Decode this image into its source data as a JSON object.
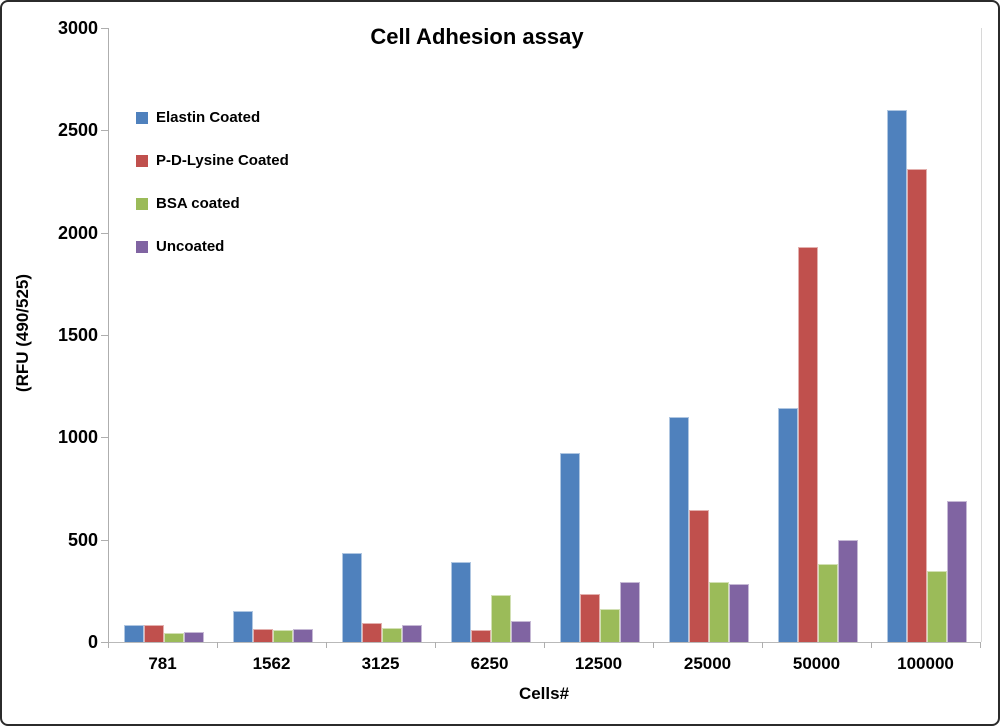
{
  "chart_data": {
    "type": "bar",
    "title": "Cell Adhesion assay",
    "xlabel": "Cells#",
    "ylabel": "(RFU (490/525)",
    "categories": [
      "781",
      "1562",
      "3125",
      "6250",
      "12500",
      "25000",
      "50000",
      "100000"
    ],
    "series": [
      {
        "name": "Elastin Coated",
        "color": "#4F81BD",
        "values": [
          85,
          153,
          435,
          390,
          925,
          1100,
          1145,
          2600
        ]
      },
      {
        "name": "P-D-Lysine Coated",
        "color": "#C0504D",
        "values": [
          84,
          62,
          95,
          58,
          235,
          645,
          1930,
          2310
        ]
      },
      {
        "name": "BSA coated",
        "color": "#9BBB59",
        "values": [
          44,
          57,
          69,
          228,
          163,
          293,
          380,
          348
        ]
      },
      {
        "name": "Uncoated",
        "color": "#8064A2",
        "values": [
          51,
          65,
          83,
          103,
          295,
          286,
          500,
          690
        ]
      }
    ],
    "ylim": [
      0,
      3000
    ],
    "y_ticks": [
      3000,
      2500,
      2000,
      1500,
      1000,
      500,
      0
    ],
    "grid": false,
    "legend_position": "upper-left-inside",
    "axis_color": "#aeaeae",
    "text_color": "#000000"
  }
}
